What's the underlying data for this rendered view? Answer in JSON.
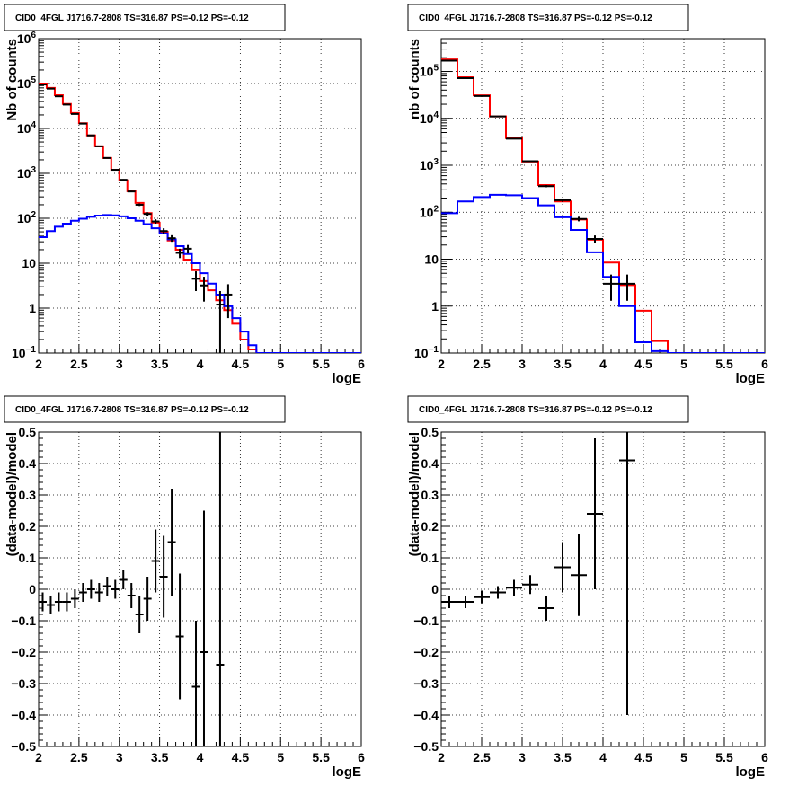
{
  "chart_data": [
    {
      "type": "line",
      "title": "CID0_4FGL J1716.7-2808 TS=316.87 PS=-0.12 PS=-0.12",
      "xlabel": "logE",
      "ylabel": "Nb of counts",
      "yscale": "log",
      "xlim": [
        2,
        6
      ],
      "ylim": [
        0.1,
        1000000
      ],
      "grid": true,
      "x_ticks": [
        "2",
        "2.5",
        "3",
        "3.5",
        "4",
        "4.5",
        "5",
        "5.5",
        "6"
      ],
      "y_ticks": [
        {
          "value": 0.1,
          "base": "10",
          "exp": "−1"
        },
        {
          "value": 1,
          "label": "1"
        },
        {
          "value": 10,
          "label": "10"
        },
        {
          "value": 100,
          "base": "10",
          "exp": "2"
        },
        {
          "value": 1000,
          "base": "10",
          "exp": "3"
        },
        {
          "value": 10000,
          "base": "10",
          "exp": "4"
        },
        {
          "value": 100000,
          "base": "10",
          "exp": "5"
        },
        {
          "value": 1000000,
          "base": "10",
          "exp": "6"
        }
      ],
      "bin_edges": [
        2.0,
        2.1,
        2.2,
        2.3,
        2.4,
        2.5,
        2.6,
        2.7,
        2.8,
        2.9,
        3.0,
        3.1,
        3.2,
        3.3,
        3.4,
        3.5,
        3.6,
        3.7,
        3.8,
        3.9,
        4.0,
        4.1,
        4.2,
        4.3,
        4.4,
        4.5,
        4.6,
        4.7,
        4.8,
        4.9,
        5.0,
        5.1,
        5.2,
        5.3,
        5.4,
        5.5,
        5.6,
        5.7,
        5.8,
        5.9,
        6.0
      ],
      "series": [
        {
          "color": "#ff0000",
          "style": "step",
          "values": [
            100000,
            80000,
            55000,
            35000,
            22000,
            13000,
            7000,
            4000,
            2200,
            1200,
            700,
            400,
            220,
            130,
            80,
            50,
            32,
            20,
            12,
            7,
            4,
            2.5,
            1.5,
            0.9,
            0.45,
            0.2,
            0.12,
            0.1,
            0.1,
            0.1,
            0.1,
            0.1,
            0.1,
            0.1,
            0.1,
            0.1,
            0.1,
            0.1,
            0.1,
            0.1
          ]
        },
        {
          "color": "#0000ff",
          "style": "step",
          "values": [
            38,
            52,
            65,
            76,
            88,
            98,
            108,
            115,
            118,
            116,
            110,
            100,
            88,
            74,
            60,
            46,
            34,
            24,
            16,
            10,
            6,
            3.5,
            2,
            1.1,
            0.6,
            0.3,
            0.15,
            0.1,
            0.1,
            0.1,
            0.1,
            0.1,
            0.1,
            0.1,
            0.1,
            0.1,
            0.1,
            0.1,
            0.1,
            0.1
          ]
        }
      ],
      "data_points": [
        {
          "x": 2.05,
          "y": 95000,
          "ylo": 94000,
          "yhi": 96000
        },
        {
          "x": 2.15,
          "y": 77000,
          "ylo": 76000,
          "yhi": 78000
        },
        {
          "x": 2.25,
          "y": 52000,
          "ylo": 51000,
          "yhi": 53000
        },
        {
          "x": 2.35,
          "y": 34000,
          "ylo": 33500,
          "yhi": 34500
        },
        {
          "x": 2.45,
          "y": 21000,
          "ylo": 20800,
          "yhi": 21200
        },
        {
          "x": 2.55,
          "y": 12800,
          "ylo": 12600,
          "yhi": 13000
        },
        {
          "x": 2.65,
          "y": 7000,
          "ylo": 6900,
          "yhi": 7100
        },
        {
          "x": 2.75,
          "y": 4000,
          "ylo": 3950,
          "yhi": 4050
        },
        {
          "x": 2.85,
          "y": 2200,
          "ylo": 2150,
          "yhi": 2250
        },
        {
          "x": 2.95,
          "y": 1200,
          "ylo": 1170,
          "yhi": 1230
        },
        {
          "x": 3.05,
          "y": 720,
          "ylo": 700,
          "yhi": 745
        },
        {
          "x": 3.15,
          "y": 395,
          "ylo": 380,
          "yhi": 410
        },
        {
          "x": 3.25,
          "y": 200,
          "ylo": 188,
          "yhi": 213
        },
        {
          "x": 3.35,
          "y": 125,
          "ylo": 114,
          "yhi": 136
        },
        {
          "x": 3.45,
          "y": 85,
          "ylo": 76,
          "yhi": 95
        },
        {
          "x": 3.55,
          "y": 52,
          "ylo": 45,
          "yhi": 60
        },
        {
          "x": 3.65,
          "y": 36,
          "ylo": 30,
          "yhi": 42
        },
        {
          "x": 3.75,
          "y": 17,
          "ylo": 13,
          "yhi": 21
        },
        {
          "x": 3.85,
          "y": 21,
          "ylo": 16.5,
          "yhi": 25.5
        },
        {
          "x": 3.95,
          "y": 4.5,
          "ylo": 2.4,
          "yhi": 6.6
        },
        {
          "x": 4.05,
          "y": 3.2,
          "ylo": 1.4,
          "yhi": 5
        },
        {
          "x": 4.25,
          "y": 1.2,
          "ylo": 0.1,
          "yhi": 2.4
        },
        {
          "x": 4.35,
          "y": 2,
          "ylo": 0.6,
          "yhi": 3.4
        }
      ]
    },
    {
      "type": "line",
      "title": "CID0_4FGL J1716.7-2808 TS=316.87 PS=-0.12 PS=-0.12",
      "xlabel": "logE",
      "ylabel": "nb of counts",
      "yscale": "log",
      "xlim": [
        2,
        6
      ],
      "ylim": [
        0.1,
        500000
      ],
      "grid": true,
      "x_ticks": [
        "2",
        "2.5",
        "3",
        "3.5",
        "4",
        "4.5",
        "5",
        "5.5",
        "6"
      ],
      "y_ticks": [
        {
          "value": 0.1,
          "base": "10",
          "exp": "−1"
        },
        {
          "value": 1,
          "label": "1"
        },
        {
          "value": 10,
          "label": "10"
        },
        {
          "value": 100,
          "base": "10",
          "exp": "2"
        },
        {
          "value": 1000,
          "base": "10",
          "exp": "3"
        },
        {
          "value": 10000,
          "base": "10",
          "exp": "4"
        },
        {
          "value": 100000,
          "base": "10",
          "exp": "5"
        }
      ],
      "bin_edges": [
        2.0,
        2.2,
        2.4,
        2.6,
        2.8,
        3.0,
        3.2,
        3.4,
        3.6,
        3.8,
        4.0,
        4.2,
        4.4,
        4.6,
        4.8,
        5.0,
        5.2,
        5.4,
        5.6,
        5.8,
        6.0
      ],
      "series": [
        {
          "color": "#ff0000",
          "style": "step",
          "values": [
            180000,
            75000,
            31000,
            11000,
            3800,
            1200,
            380,
            170,
            70,
            26,
            8.5,
            2.8,
            0.8,
            0.18,
            0.1,
            0.1,
            0.1,
            0.1,
            0.1,
            0.1
          ]
        },
        {
          "color": "#0000ff",
          "style": "step",
          "values": [
            95,
            170,
            210,
            235,
            230,
            200,
            140,
            78,
            42,
            14,
            4.2,
            1,
            0.17,
            0.11,
            0.1,
            0.1,
            0.1,
            0.1,
            0.1,
            0.1
          ]
        }
      ],
      "data_points": [
        {
          "x": 2.1,
          "y": 170000,
          "ylo": 169000,
          "yhi": 171000
        },
        {
          "x": 2.3,
          "y": 72000,
          "ylo": 71500,
          "yhi": 72500
        },
        {
          "x": 2.5,
          "y": 30000,
          "ylo": 29800,
          "yhi": 30200
        },
        {
          "x": 2.7,
          "y": 11000,
          "ylo": 10900,
          "yhi": 11100
        },
        {
          "x": 2.9,
          "y": 3700,
          "ylo": 3640,
          "yhi": 3760
        },
        {
          "x": 3.1,
          "y": 1220,
          "ylo": 1185,
          "yhi": 1255
        },
        {
          "x": 3.3,
          "y": 360,
          "ylo": 341,
          "yhi": 379
        },
        {
          "x": 3.5,
          "y": 180,
          "ylo": 167,
          "yhi": 193
        },
        {
          "x": 3.7,
          "y": 72,
          "ylo": 64,
          "yhi": 80
        },
        {
          "x": 3.9,
          "y": 27,
          "ylo": 22,
          "yhi": 32
        },
        {
          "x": 4.1,
          "y": 3,
          "ylo": 1.3,
          "yhi": 4.7
        },
        {
          "x": 4.3,
          "y": 3,
          "ylo": 1.3,
          "yhi": 4.7
        }
      ]
    },
    {
      "type": "scatter",
      "title": "CID0_4FGL J1716.7-2808 TS=316.87 PS=-0.12 PS=-0.12",
      "xlabel": "logE",
      "ylabel": "(data-model)/model",
      "xlim": [
        2,
        6
      ],
      "ylim": [
        -0.5,
        0.5
      ],
      "grid": true,
      "x_ticks": [
        "2",
        "2.5",
        "3",
        "3.5",
        "4",
        "4.5",
        "5",
        "5.5",
        "6"
      ],
      "y_ticks": [
        "−0.5",
        "−0.4",
        "−0.3",
        "−0.2",
        "−0.1",
        "0",
        "0.1",
        "0.2",
        "0.3",
        "0.4",
        "0.5"
      ],
      "y_tick_values": [
        -0.5,
        -0.4,
        -0.3,
        -0.2,
        -0.1,
        0,
        0.1,
        0.2,
        0.3,
        0.4,
        0.5
      ],
      "xerr": 0.05,
      "points": [
        {
          "x": 2.05,
          "y": -0.04,
          "ylo": -0.07,
          "yhi": -0.01
        },
        {
          "x": 2.15,
          "y": -0.05,
          "ylo": -0.08,
          "yhi": -0.02
        },
        {
          "x": 2.25,
          "y": -0.04,
          "ylo": -0.07,
          "yhi": -0.01
        },
        {
          "x": 2.35,
          "y": -0.04,
          "ylo": -0.07,
          "yhi": -0.01
        },
        {
          "x": 2.45,
          "y": -0.03,
          "ylo": -0.06,
          "yhi": 0.0
        },
        {
          "x": 2.55,
          "y": -0.01,
          "ylo": -0.04,
          "yhi": 0.02
        },
        {
          "x": 2.65,
          "y": 0.0,
          "ylo": -0.03,
          "yhi": 0.03
        },
        {
          "x": 2.75,
          "y": -0.01,
          "ylo": -0.04,
          "yhi": 0.02
        },
        {
          "x": 2.85,
          "y": 0.01,
          "ylo": -0.02,
          "yhi": 0.04
        },
        {
          "x": 2.95,
          "y": 0.0,
          "ylo": -0.03,
          "yhi": 0.03
        },
        {
          "x": 3.05,
          "y": 0.03,
          "ylo": 0.0,
          "yhi": 0.06
        },
        {
          "x": 3.15,
          "y": -0.02,
          "ylo": -0.06,
          "yhi": 0.02
        },
        {
          "x": 3.25,
          "y": -0.08,
          "ylo": -0.14,
          "yhi": -0.02
        },
        {
          "x": 3.35,
          "y": -0.03,
          "ylo": -0.1,
          "yhi": 0.04
        },
        {
          "x": 3.45,
          "y": 0.09,
          "ylo": -0.01,
          "yhi": 0.19
        },
        {
          "x": 3.55,
          "y": 0.04,
          "ylo": -0.09,
          "yhi": 0.17
        },
        {
          "x": 3.65,
          "y": 0.15,
          "ylo": -0.02,
          "yhi": 0.32
        },
        {
          "x": 3.75,
          "y": -0.15,
          "ylo": -0.35,
          "yhi": 0.05
        },
        {
          "x": 3.95,
          "y": -0.31,
          "ylo": -0.5,
          "yhi": -0.1
        },
        {
          "x": 4.05,
          "y": -0.2,
          "ylo": -0.5,
          "yhi": 0.25
        },
        {
          "x": 4.25,
          "y": -0.24,
          "ylo": -0.5,
          "yhi": 0.5
        }
      ]
    },
    {
      "type": "scatter",
      "title": "CID0_4FGL J1716.7-2808 TS=316.87 PS=-0.12 PS=-0.12",
      "xlabel": "logE",
      "ylabel": "(data-model)/model",
      "xlim": [
        2,
        6
      ],
      "ylim": [
        -0.5,
        0.5
      ],
      "grid": true,
      "x_ticks": [
        "2",
        "2.5",
        "3",
        "3.5",
        "4",
        "4.5",
        "5",
        "5.5",
        "6"
      ],
      "y_ticks": [
        "−0.5",
        "−0.4",
        "−0.3",
        "−0.2",
        "−0.1",
        "0",
        "0.1",
        "0.2",
        "0.3",
        "0.4",
        "0.5"
      ],
      "y_tick_values": [
        -0.5,
        -0.4,
        -0.3,
        -0.2,
        -0.1,
        0,
        0.1,
        0.2,
        0.3,
        0.4,
        0.5
      ],
      "xerr": 0.1,
      "points": [
        {
          "x": 2.1,
          "y": -0.04,
          "ylo": -0.06,
          "yhi": -0.02
        },
        {
          "x": 2.3,
          "y": -0.04,
          "ylo": -0.06,
          "yhi": -0.02
        },
        {
          "x": 2.5,
          "y": -0.025,
          "ylo": -0.045,
          "yhi": -0.005
        },
        {
          "x": 2.7,
          "y": -0.01,
          "ylo": -0.03,
          "yhi": 0.01
        },
        {
          "x": 2.9,
          "y": 0.005,
          "ylo": -0.02,
          "yhi": 0.03
        },
        {
          "x": 3.1,
          "y": 0.015,
          "ylo": -0.015,
          "yhi": 0.045
        },
        {
          "x": 3.3,
          "y": -0.06,
          "ylo": -0.1,
          "yhi": -0.02
        },
        {
          "x": 3.5,
          "y": 0.07,
          "ylo": -0.01,
          "yhi": 0.15
        },
        {
          "x": 3.7,
          "y": 0.045,
          "ylo": -0.085,
          "yhi": 0.175
        },
        {
          "x": 3.9,
          "y": 0.24,
          "ylo": 0.0,
          "yhi": 0.48
        },
        {
          "x": 4.3,
          "y": 0.41,
          "ylo": -0.4,
          "yhi": 0.5
        }
      ]
    }
  ]
}
